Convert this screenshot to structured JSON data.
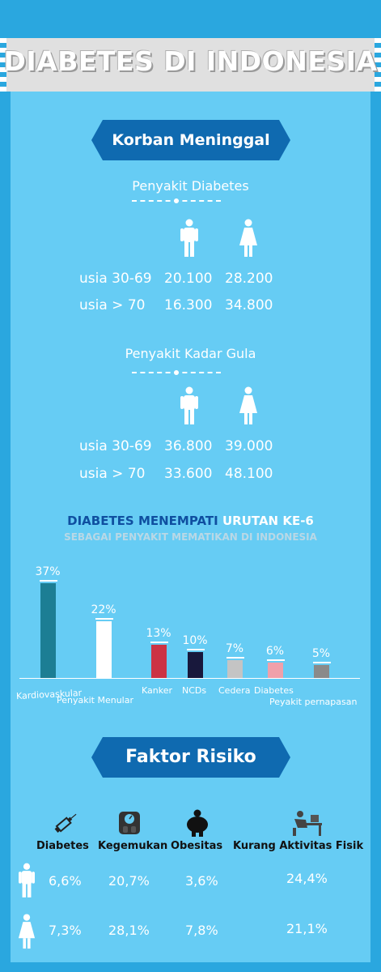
{
  "title": "DIABETES DI INDONESIA",
  "deaths": {
    "heading": "Korban Meninggal",
    "diabetes": {
      "subtitle": "Penyakit Diabetes",
      "rows": [
        {
          "label": "usia 30-69",
          "male": "20.100",
          "female": "28.200"
        },
        {
          "label": "usia > 70",
          "male": "16.300",
          "female": "34.800"
        }
      ]
    },
    "sugar": {
      "subtitle": "Penyakit Kadar Gula",
      "rows": [
        {
          "label": "usia 30-69",
          "male": "36.800",
          "female": "39.000"
        },
        {
          "label": "usia > 70",
          "male": "33.600",
          "female": "48.100"
        }
      ]
    }
  },
  "ranking": {
    "line1_a": "DIABETES MENEMPATI",
    "line1_b": "URUTAN KE-6",
    "line2": "SEBAGAI PENYAKIT MEMATIKAN DI INDONESIA"
  },
  "chart_data": {
    "type": "bar",
    "categories": [
      "Kardiovaskular",
      "Penyakit Menular",
      "Kanker",
      "NCDs",
      "Cedera",
      "Diabetes",
      "Peyakit pernapasan"
    ],
    "values": [
      37,
      22,
      13,
      10,
      7,
      6,
      5
    ],
    "value_labels": [
      "37%",
      "22%",
      "13%",
      "10%",
      "7%",
      "6%",
      "5%"
    ],
    "colors": [
      "#1c7e94",
      "#ffffff",
      "#cc3344",
      "#18183c",
      "#c4c4c4",
      "#f0a0aa",
      "#8a8a8a"
    ],
    "ylim": [
      0,
      37
    ]
  },
  "risk": {
    "heading": "Faktor Risiko",
    "columns": [
      {
        "label": "Diabetes",
        "icon": "syringe-icon"
      },
      {
        "label": "Kegemukan",
        "icon": "scale-icon"
      },
      {
        "label": "Obesitas",
        "icon": "obese-person-icon"
      },
      {
        "label": "Kurang Aktivitas Fisik",
        "icon": "desk-worker-icon"
      }
    ],
    "male": [
      "6,6%",
      "20,7%",
      "3,6%",
      "24,4%"
    ],
    "female": [
      "7,3%",
      "28,1%",
      "7,8%",
      "21,1%"
    ]
  }
}
